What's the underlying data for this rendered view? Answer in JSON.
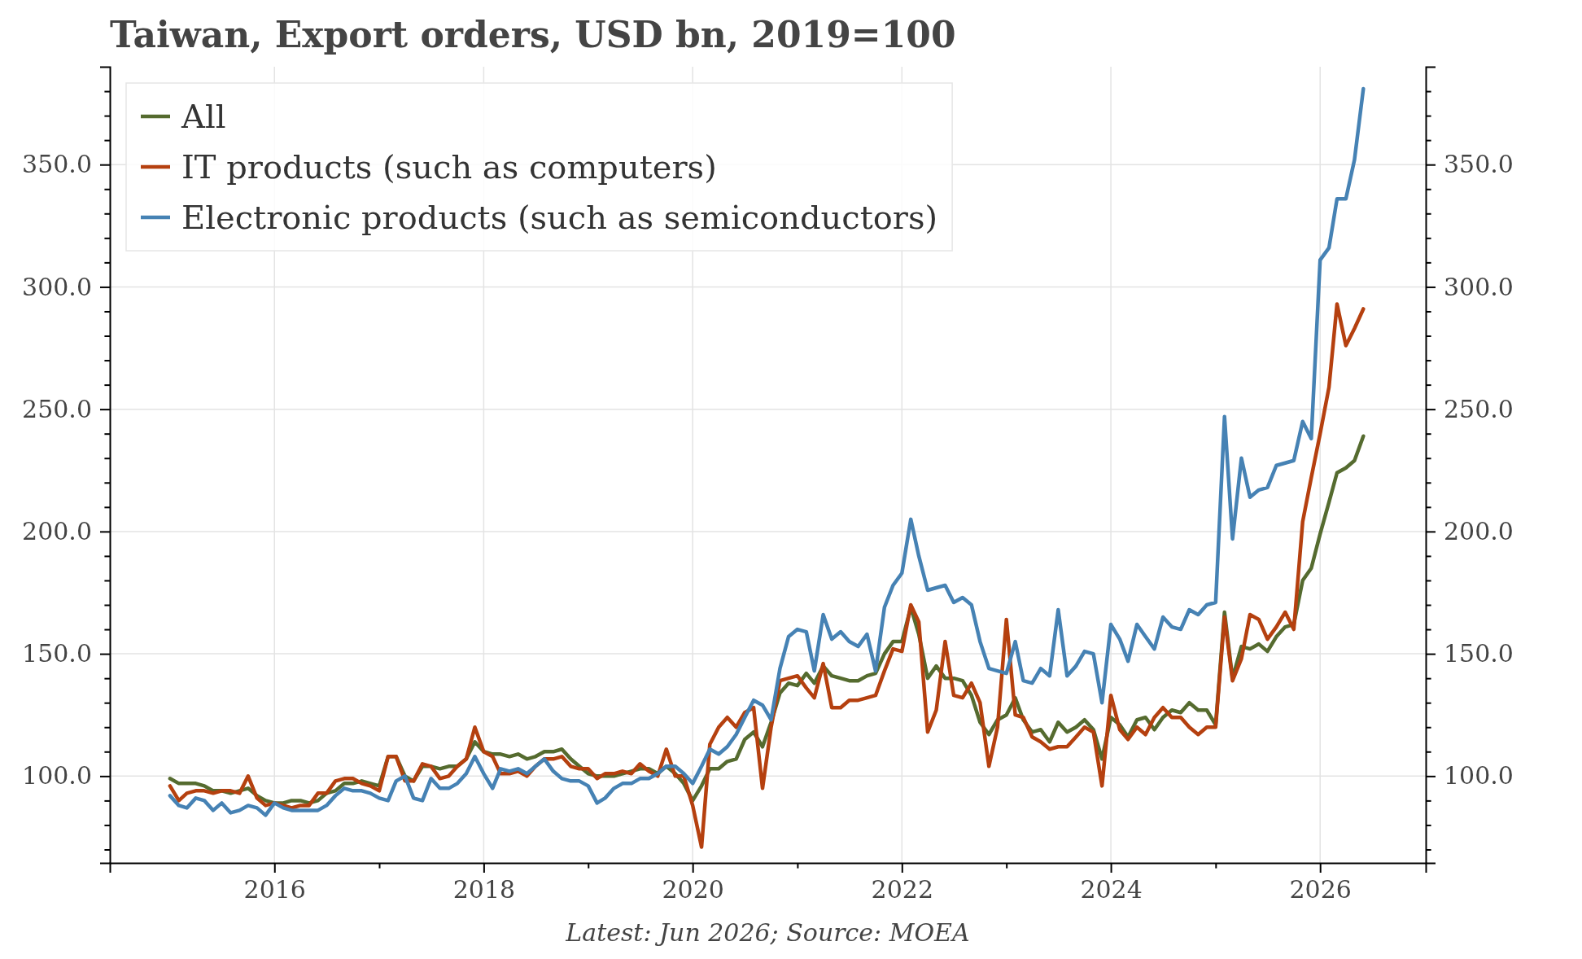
{
  "chart_data": {
    "type": "line",
    "title": "Taiwan, Export orders, USD bn, 2019=100",
    "annotations": [
      "Latest: Jun 2026; Source: MOEA"
    ],
    "x": [
      "2015-01",
      "2015-02",
      "2015-03",
      "2015-04",
      "2015-05",
      "2015-06",
      "2015-07",
      "2015-08",
      "2015-09",
      "2015-10",
      "2015-11",
      "2015-12",
      "2016-01",
      "2016-02",
      "2016-03",
      "2016-04",
      "2016-05",
      "2016-06",
      "2016-07",
      "2016-08",
      "2016-09",
      "2016-10",
      "2016-11",
      "2016-12",
      "2017-01",
      "2017-02",
      "2017-03",
      "2017-04",
      "2017-05",
      "2017-06",
      "2017-07",
      "2017-08",
      "2017-09",
      "2017-10",
      "2017-11",
      "2017-12",
      "2018-01",
      "2018-02",
      "2018-03",
      "2018-04",
      "2018-05",
      "2018-06",
      "2018-07",
      "2018-08",
      "2018-09",
      "2018-10",
      "2018-11",
      "2018-12",
      "2019-01",
      "2019-02",
      "2019-03",
      "2019-04",
      "2019-05",
      "2019-06",
      "2019-07",
      "2019-08",
      "2019-09",
      "2019-10",
      "2019-11",
      "2019-12",
      "2020-01",
      "2020-02",
      "2020-03",
      "2020-04",
      "2020-05",
      "2020-06",
      "2020-07",
      "2020-08",
      "2020-09",
      "2020-10",
      "2020-11",
      "2020-12",
      "2021-01",
      "2021-02",
      "2021-03",
      "2021-04",
      "2021-05",
      "2021-06",
      "2021-07",
      "2021-08",
      "2021-09",
      "2021-10",
      "2021-11",
      "2021-12",
      "2022-01",
      "2022-02",
      "2022-03",
      "2022-04",
      "2022-05",
      "2022-06",
      "2022-07",
      "2022-08",
      "2022-09",
      "2022-10",
      "2022-11",
      "2022-12",
      "2023-01",
      "2023-02",
      "2023-03",
      "2023-04",
      "2023-05",
      "2023-06",
      "2023-07",
      "2023-08",
      "2023-09",
      "2023-10",
      "2023-11",
      "2023-12",
      "2024-01",
      "2024-02",
      "2024-03",
      "2024-04",
      "2024-05",
      "2024-06",
      "2024-07",
      "2024-08",
      "2024-09",
      "2024-10",
      "2024-11",
      "2024-12",
      "2025-01",
      "2025-02",
      "2025-03",
      "2025-04",
      "2025-05",
      "2025-06",
      "2025-07",
      "2025-08",
      "2025-09",
      "2025-10",
      "2025-11",
      "2025-12",
      "2026-01",
      "2026-02",
      "2026-03",
      "2026-04",
      "2026-05",
      "2026-06"
    ],
    "series": [
      {
        "name": "All",
        "color": "#556b2f",
        "values": [
          99,
          97,
          97,
          97,
          96,
          94,
          94,
          93,
          94,
          95,
          92,
          90,
          89,
          89,
          90,
          90,
          89,
          90,
          93,
          94,
          97,
          97,
          98,
          97,
          96,
          108,
          108,
          100,
          98,
          104,
          104,
          103,
          104,
          104,
          107,
          114,
          110,
          109,
          109,
          108,
          109,
          107,
          108,
          110,
          110,
          111,
          107,
          104,
          101,
          100,
          100,
          100,
          101,
          102,
          103,
          103,
          101,
          104,
          101,
          97,
          90,
          96,
          103,
          103,
          106,
          107,
          115,
          118,
          112,
          122,
          134,
          138,
          137,
          142,
          138,
          145,
          141,
          140,
          139,
          139,
          141,
          142,
          150,
          155,
          155,
          169,
          158,
          140,
          145,
          140,
          140,
          139,
          133,
          122,
          117,
          123,
          125,
          132,
          123,
          118,
          119,
          114,
          122,
          118,
          120,
          123,
          119,
          107,
          124,
          121,
          116,
          123,
          124,
          119,
          124,
          127,
          126,
          130,
          127,
          127,
          121,
          167,
          140,
          153,
          152,
          154,
          151,
          157,
          161,
          162,
          180,
          185,
          199,
          212,
          224,
          226,
          229,
          239
        ]
      },
      {
        "name": "IT products (such as computers)",
        "color": "#b5400f",
        "values": [
          96,
          90,
          93,
          94,
          94,
          93,
          94,
          94,
          93,
          100,
          91,
          88,
          89,
          88,
          87,
          88,
          88,
          93,
          93,
          98,
          99,
          99,
          97,
          96,
          94,
          108,
          108,
          98,
          98,
          105,
          104,
          99,
          100,
          104,
          107,
          120,
          110,
          108,
          101,
          101,
          102,
          100,
          104,
          107,
          107,
          108,
          104,
          103,
          103,
          99,
          101,
          101,
          102,
          101,
          105,
          102,
          100,
          111,
          100,
          100,
          88,
          71,
          113,
          120,
          124,
          120,
          126,
          128,
          95,
          120,
          139,
          140,
          141,
          136,
          132,
          146,
          128,
          128,
          131,
          131,
          132,
          133,
          143,
          152,
          151,
          170,
          163,
          118,
          127,
          155,
          133,
          132,
          138,
          130,
          104,
          120,
          164,
          125,
          124,
          116,
          114,
          111,
          112,
          112,
          116,
          120,
          118,
          96,
          133,
          119,
          115,
          120,
          117,
          124,
          128,
          124,
          124,
          120,
          117,
          120,
          120,
          165,
          139,
          148,
          166,
          164,
          156,
          161,
          167,
          160,
          204,
          222,
          240,
          259,
          293,
          276,
          283,
          291
        ]
      },
      {
        "name": "Electronic products (such as semiconductors)",
        "color": "#4682b4",
        "values": [
          92,
          88,
          87,
          91,
          90,
          86,
          89,
          85,
          86,
          88,
          87,
          84,
          89,
          87,
          86,
          86,
          86,
          86,
          88,
          92,
          95,
          94,
          94,
          93,
          91,
          90,
          98,
          100,
          91,
          90,
          99,
          95,
          95,
          97,
          101,
          108,
          101,
          95,
          103,
          102,
          103,
          101,
          104,
          107,
          102,
          99,
          98,
          98,
          96,
          89,
          91,
          95,
          97,
          97,
          99,
          99,
          101,
          104,
          104,
          101,
          97,
          104,
          111,
          109,
          112,
          117,
          124,
          131,
          129,
          123,
          144,
          157,
          160,
          159,
          143,
          166,
          156,
          159,
          155,
          153,
          158,
          143,
          169,
          178,
          183,
          205,
          190,
          176,
          177,
          178,
          171,
          173,
          170,
          155,
          144,
          143,
          142,
          155,
          139,
          138,
          144,
          141,
          168,
          141,
          145,
          151,
          150,
          130,
          162,
          156,
          147,
          162,
          157,
          152,
          165,
          161,
          160,
          168,
          166,
          170,
          171,
          247,
          197,
          230,
          214,
          217,
          218,
          227,
          228,
          229,
          245,
          238,
          311,
          316,
          336,
          336,
          352,
          381
        ]
      }
    ],
    "xlim": [
      "2014-06-05",
      "2027-01-05"
    ],
    "xticks": [
      {
        "value": "2016-01-01",
        "label": "2016"
      },
      {
        "value": "2017-01-01",
        "label": null
      },
      {
        "value": "2018-01-01",
        "label": "2018"
      },
      {
        "value": "2019-01-01",
        "label": null
      },
      {
        "value": "2020-01-01",
        "label": "2020"
      },
      {
        "value": "2021-01-01",
        "label": null
      },
      {
        "value": "2022-01-01",
        "label": "2022"
      },
      {
        "value": "2023-01-01",
        "label": null
      },
      {
        "value": "2024-01-01",
        "label": "2024"
      },
      {
        "value": "2025-01-01",
        "label": null
      },
      {
        "value": "2026-01-01",
        "label": "2026"
      }
    ],
    "ylim": [
      64.5,
      390
    ],
    "yticks": [
      {
        "value": 70,
        "label": null
      },
      {
        "value": 80,
        "label": null
      },
      {
        "value": 90,
        "label": null
      },
      {
        "value": 100,
        "label": "100.0"
      },
      {
        "value": 110,
        "label": null
      },
      {
        "value": 120,
        "label": null
      },
      {
        "value": 130,
        "label": null
      },
      {
        "value": 140,
        "label": null
      },
      {
        "value": 150,
        "label": "150.0"
      },
      {
        "value": 160,
        "label": null
      },
      {
        "value": 170,
        "label": null
      },
      {
        "value": 180,
        "label": null
      },
      {
        "value": 190,
        "label": null
      },
      {
        "value": 200,
        "label": "200.0"
      },
      {
        "value": 210,
        "label": null
      },
      {
        "value": 220,
        "label": null
      },
      {
        "value": 230,
        "label": null
      },
      {
        "value": 240,
        "label": null
      },
      {
        "value": 250,
        "label": "250.0"
      },
      {
        "value": 260,
        "label": null
      },
      {
        "value": 270,
        "label": null
      },
      {
        "value": 280,
        "label": null
      },
      {
        "value": 290,
        "label": null
      },
      {
        "value": 300,
        "label": "300.0"
      },
      {
        "value": 310,
        "label": null
      },
      {
        "value": 320,
        "label": null
      },
      {
        "value": 330,
        "label": null
      },
      {
        "value": 340,
        "label": null
      },
      {
        "value": 350,
        "label": "350.0"
      },
      {
        "value": 360,
        "label": null
      },
      {
        "value": 370,
        "label": null
      },
      {
        "value": 380,
        "label": null
      }
    ],
    "y2lim": [
      64.5,
      390
    ],
    "y2ticks": [
      {
        "value": 70,
        "label": null
      },
      {
        "value": 80,
        "label": null
      },
      {
        "value": 90,
        "label": null
      },
      {
        "value": 100,
        "label": "100.0"
      },
      {
        "value": 110,
        "label": null
      },
      {
        "value": 120,
        "label": null
      },
      {
        "value": 130,
        "label": null
      },
      {
        "value": 140,
        "label": null
      },
      {
        "value": 150,
        "label": "150.0"
      },
      {
        "value": 160,
        "label": null
      },
      {
        "value": 170,
        "label": null
      },
      {
        "value": 180,
        "label": null
      },
      {
        "value": 190,
        "label": null
      },
      {
        "value": 200,
        "label": "200.0"
      },
      {
        "value": 210,
        "label": null
      },
      {
        "value": 220,
        "label": null
      },
      {
        "value": 230,
        "label": null
      },
      {
        "value": 240,
        "label": null
      },
      {
        "value": 250,
        "label": "250.0"
      },
      {
        "value": 260,
        "label": null
      },
      {
        "value": 270,
        "label": null
      },
      {
        "value": 280,
        "label": null
      },
      {
        "value": 290,
        "label": null
      },
      {
        "value": 300,
        "label": "300.0"
      },
      {
        "value": 310,
        "label": null
      },
      {
        "value": 320,
        "label": null
      },
      {
        "value": 330,
        "label": null
      },
      {
        "value": 340,
        "label": null
      },
      {
        "value": 350,
        "label": "350.0"
      },
      {
        "value": 360,
        "label": null
      },
      {
        "value": 370,
        "label": null
      },
      {
        "value": 380,
        "label": null
      }
    ],
    "grid": true,
    "legend": "top left",
    "line_style": "solid"
  }
}
